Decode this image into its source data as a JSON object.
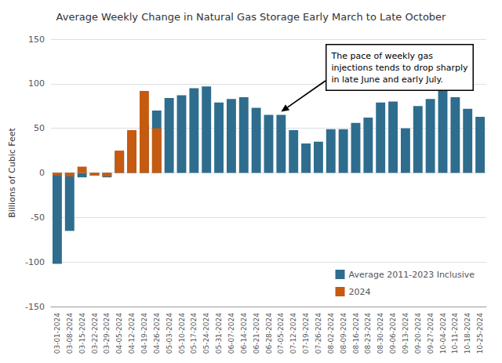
{
  "chart_data": {
    "type": "bar",
    "title": "Average Weekly Change in Natural Gas Storage Early March to Late October",
    "ylabel": "Billions of Cubic Feet",
    "categories": [
      "03-01-2024",
      "03-08-2024",
      "03-15-2024",
      "03-22-2024",
      "03-29-2024",
      "04-05-2024",
      "04-12-2024",
      "04-19-2024",
      "04-26-2024",
      "05-03-2024",
      "05-10-2024",
      "05-17-2024",
      "05-24-2024",
      "05-31-2024",
      "06-07-2024",
      "06-14-2024",
      "06-21-2024",
      "06-28-2024",
      "07-05-2024",
      "07-12-2024",
      "07-19-2024",
      "07-26-2024",
      "08-02-2024",
      "08-09-2024",
      "08-16-2024",
      "08-23-2024",
      "08-30-2024",
      "09-06-2024",
      "09-13-2024",
      "09-20-2024",
      "09-27-2024",
      "10-04-2024",
      "10-11-2024",
      "10-18-2024",
      "10-25-2024"
    ],
    "series": [
      {
        "name": "Average 2011-2023 Inclusive",
        "color": "#2e6d8e",
        "values": [
          -102,
          -65,
          -5,
          -3,
          -5,
          24,
          45,
          54,
          70,
          84,
          87,
          95,
          97,
          79,
          83,
          85,
          73,
          65,
          65,
          48,
          33,
          35,
          49,
          49,
          56,
          62,
          79,
          80,
          50,
          75,
          83,
          93,
          85,
          72,
          63
        ]
      },
      {
        "name": "2024",
        "color": "#c55a11",
        "values": [
          -3,
          -4,
          7,
          -3,
          -4,
          25,
          48,
          92,
          50,
          null,
          null,
          null,
          null,
          null,
          null,
          null,
          null,
          null,
          null,
          null,
          null,
          null,
          null,
          null,
          null,
          null,
          null,
          null,
          null,
          null,
          null,
          null,
          null,
          null,
          null
        ]
      }
    ],
    "ylim": [
      -150,
      150
    ],
    "yticks": [
      -150,
      -100,
      -50,
      0,
      50,
      100,
      150
    ],
    "grid": true,
    "legend": "lower right",
    "annotations": [
      {
        "text": "The pace of weekly gas\ninjections tends to drop sharply\nin late June and early July.",
        "x": "07-05-2024"
      }
    ]
  }
}
